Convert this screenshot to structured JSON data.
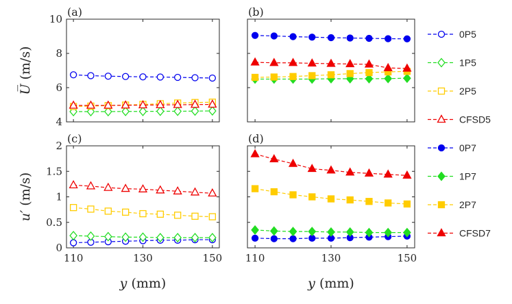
{
  "chart_data": {
    "type": "line",
    "x": [
      110,
      115,
      120,
      125,
      130,
      135,
      140,
      145,
      150
    ],
    "xticks": [
      110,
      130,
      150
    ],
    "xlim": [
      108,
      152
    ],
    "xlabel_var": "y",
    "xlabel_unit": "(mm)",
    "legend": [
      {
        "name": "0P5",
        "color": "#0000ee",
        "marker": "circle",
        "filled": false
      },
      {
        "name": "1P5",
        "color": "#22dd22",
        "marker": "diamond",
        "filled": false
      },
      {
        "name": "2P5",
        "color": "#ffcc00",
        "marker": "square",
        "filled": false
      },
      {
        "name": "CFSD5",
        "color": "#ee0000",
        "marker": "triangle",
        "filled": false
      },
      {
        "name": "0P7",
        "color": "#0000ee",
        "marker": "circle",
        "filled": true
      },
      {
        "name": "1P7",
        "color": "#22dd22",
        "marker": "diamond",
        "filled": true
      },
      {
        "name": "2P7",
        "color": "#ffcc00",
        "marker": "square",
        "filled": true
      },
      {
        "name": "CFSD7",
        "color": "#ee0000",
        "marker": "triangle",
        "filled": true
      }
    ],
    "rows": [
      {
        "ylabel_var": "U̅",
        "ylabel_unit": "(m/s)",
        "ylim": [
          4,
          10
        ],
        "yticks": [
          4,
          6,
          8,
          10
        ],
        "ytick_labels": [
          "4",
          "6",
          "8",
          "10"
        ]
      },
      {
        "ylabel_var": "u′",
        "ylabel_unit": "(m/s)",
        "ylim": [
          0,
          2
        ],
        "yticks": [
          0,
          0.5,
          1,
          1.5,
          2
        ],
        "ytick_labels": [
          "0",
          "0.5",
          "1",
          "1.5",
          "2"
        ]
      }
    ],
    "panels": [
      {
        "label": "(a)",
        "row": 0,
        "col": 0,
        "series": [
          {
            "name": "0P5",
            "values": [
              6.75,
              6.7,
              6.67,
              6.65,
              6.63,
              6.62,
              6.6,
              6.58,
              6.56
            ]
          },
          {
            "name": "1P5",
            "values": [
              4.6,
              4.6,
              4.6,
              4.61,
              4.61,
              4.62,
              4.62,
              4.63,
              4.64
            ]
          },
          {
            "name": "2P5",
            "values": [
              4.9,
              4.92,
              4.95,
              4.98,
              5.02,
              5.06,
              5.1,
              5.13,
              5.15
            ]
          },
          {
            "name": "CFSD5",
            "values": [
              4.96,
              4.96,
              4.96,
              4.97,
              4.98,
              4.99,
              5.0,
              5.01,
              5.02
            ]
          }
        ]
      },
      {
        "label": "(b)",
        "row": 0,
        "col": 1,
        "series": [
          {
            "name": "0P7",
            "values": [
              9.05,
              9.02,
              8.98,
              8.95,
              8.92,
              8.9,
              8.88,
              8.86,
              8.85
            ]
          },
          {
            "name": "1P7",
            "values": [
              6.5,
              6.5,
              6.5,
              6.5,
              6.52,
              6.52,
              6.52,
              6.53,
              6.55
            ]
          },
          {
            "name": "2P7",
            "values": [
              6.6,
              6.62,
              6.65,
              6.7,
              6.75,
              6.82,
              6.88,
              6.92,
              6.95
            ]
          },
          {
            "name": "CFSD7",
            "values": [
              7.48,
              7.45,
              7.45,
              7.42,
              7.4,
              7.38,
              7.36,
              7.15,
              7.12
            ]
          }
        ]
      },
      {
        "label": "(c)",
        "row": 1,
        "col": 0,
        "series": [
          {
            "name": "0P5",
            "values": [
              0.1,
              0.11,
              0.12,
              0.13,
              0.14,
              0.15,
              0.15,
              0.16,
              0.16
            ]
          },
          {
            "name": "1P5",
            "values": [
              0.24,
              0.23,
              0.22,
              0.21,
              0.21,
              0.2,
              0.2,
              0.2,
              0.2
            ]
          },
          {
            "name": "2P5",
            "values": [
              0.79,
              0.76,
              0.72,
              0.7,
              0.67,
              0.66,
              0.64,
              0.62,
              0.61
            ]
          },
          {
            "name": "CFSD5",
            "values": [
              1.23,
              1.21,
              1.18,
              1.16,
              1.15,
              1.13,
              1.11,
              1.09,
              1.07
            ]
          }
        ]
      },
      {
        "label": "(d)",
        "row": 1,
        "col": 1,
        "series": [
          {
            "name": "0P7",
            "values": [
              0.19,
              0.18,
              0.18,
              0.19,
              0.19,
              0.2,
              0.21,
              0.22,
              0.23
            ]
          },
          {
            "name": "1P7",
            "values": [
              0.35,
              0.33,
              0.32,
              0.32,
              0.31,
              0.31,
              0.3,
              0.3,
              0.3
            ]
          },
          {
            "name": "2P7",
            "values": [
              1.16,
              1.1,
              1.04,
              1.0,
              0.96,
              0.94,
              0.91,
              0.88,
              0.86
            ]
          },
          {
            "name": "CFSD7",
            "values": [
              1.84,
              1.74,
              1.65,
              1.55,
              1.52,
              1.48,
              1.46,
              1.44,
              1.42
            ]
          }
        ]
      }
    ]
  }
}
